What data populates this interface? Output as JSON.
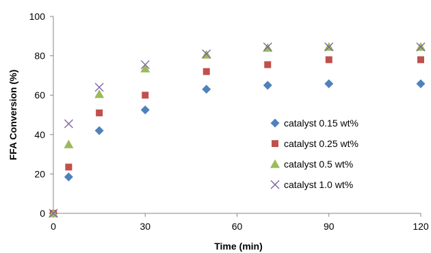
{
  "chart_data": {
    "type": "scatter",
    "title": "",
    "xlabel": "Time (min)",
    "ylabel": "FFA Conversion (%)",
    "xlim": [
      0,
      120
    ],
    "ylim": [
      0,
      100
    ],
    "x_ticks": [
      0,
      30,
      60,
      90,
      120
    ],
    "y_ticks": [
      0,
      20,
      40,
      60,
      80,
      100
    ],
    "grid": false,
    "legend_position": "center-right",
    "series": [
      {
        "name": "catalyst 0.15 wt%",
        "marker": "diamond",
        "color": "#4F81BD",
        "x": [
          0,
          5,
          15,
          30,
          50,
          70,
          90,
          120
        ],
        "y": [
          0,
          18.5,
          42,
          52.5,
          63,
          65,
          65.8,
          65.8
        ]
      },
      {
        "name": "catalyst 0.25 wt%",
        "marker": "square",
        "color": "#C0504D",
        "x": [
          0,
          5,
          15,
          30,
          50,
          70,
          90,
          120
        ],
        "y": [
          0,
          23.5,
          51,
          60,
          72,
          75.5,
          78,
          78
        ]
      },
      {
        "name": "catalyst 0.5 wt%",
        "marker": "triangle",
        "color": "#9BBB59",
        "x": [
          0,
          5,
          15,
          30,
          50,
          70,
          90,
          120
        ],
        "y": [
          0,
          35,
          60.5,
          73.5,
          80.5,
          84,
          84.5,
          84.5
        ]
      },
      {
        "name": "catalyst 1.0 wt%",
        "marker": "x",
        "color": "#8064A2",
        "x": [
          0,
          5,
          15,
          30,
          50,
          70,
          90,
          120
        ],
        "y": [
          0,
          45.5,
          64,
          75.5,
          81,
          84.5,
          84.5,
          84.5
        ]
      }
    ]
  }
}
